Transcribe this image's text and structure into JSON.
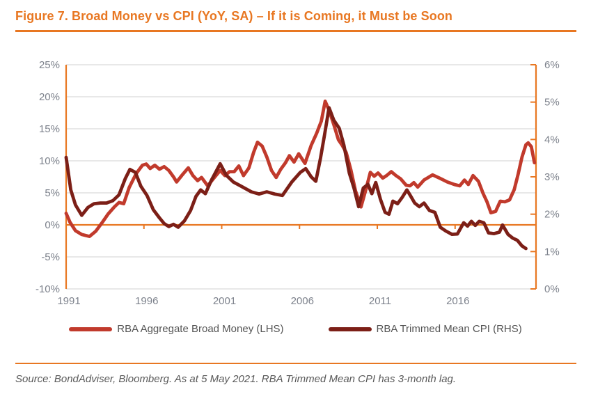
{
  "header": {
    "title": "Figure 7. Broad Money vs CPI (YoY, SA) – If it is Coming, it Must be Soon"
  },
  "colors": {
    "accent_orange": "#E87722",
    "gridline_gray": "#D9D9D9",
    "tick_label_gray": "#7D828C",
    "legend_text_gray": "#555555",
    "source_text_gray": "#595959",
    "broad_money_red": "#C13A2C",
    "cpi_maroon": "#7C1F17"
  },
  "footer": {
    "source_note": "Source: BondAdviser, Bloomberg. As at 5 May 2021. RBA Trimmed Mean CPI has 3-month lag."
  },
  "chart_data": {
    "type": "line",
    "title": "Figure 7. Broad Money vs CPI (YoY, SA) – If it is Coming, it Must be Soon",
    "grid": "horizontal",
    "legend_position": "bottom",
    "x_axis": {
      "range": [
        1991,
        2021.2
      ],
      "tick_years": [
        1991,
        1996,
        2001,
        2006,
        2011,
        2016
      ],
      "zero_line_tick_years": [
        1996,
        2001,
        2006,
        2011,
        2016
      ]
    },
    "y_left": {
      "min": -10,
      "max": 25,
      "tick_step": 5,
      "unit": "%",
      "ticks": [
        25,
        20,
        15,
        10,
        5,
        0,
        -5,
        -10
      ]
    },
    "y_right": {
      "min": 0,
      "max": 6,
      "tick_step": 1,
      "unit": "%",
      "ticks": [
        6,
        5,
        4,
        3,
        2,
        1,
        0
      ]
    },
    "series": [
      {
        "name": "RBA Aggregate Broad Money (LHS)",
        "axis": "left",
        "color": "#C13A2C",
        "points": [
          [
            1991.0,
            1.8
          ],
          [
            1991.25,
            0.4
          ],
          [
            1991.6,
            -0.9
          ],
          [
            1992.0,
            -1.5
          ],
          [
            1992.5,
            -1.8
          ],
          [
            1992.9,
            -1.0
          ],
          [
            1993.3,
            0.3
          ],
          [
            1993.7,
            1.7
          ],
          [
            1994.1,
            2.8
          ],
          [
            1994.4,
            3.5
          ],
          [
            1994.7,
            3.3
          ],
          [
            1995.05,
            5.8
          ],
          [
            1995.5,
            8.0
          ],
          [
            1995.9,
            9.3
          ],
          [
            1996.15,
            9.5
          ],
          [
            1996.4,
            8.8
          ],
          [
            1996.7,
            9.3
          ],
          [
            1997.0,
            8.7
          ],
          [
            1997.3,
            9.1
          ],
          [
            1997.6,
            8.5
          ],
          [
            1997.9,
            7.5
          ],
          [
            1998.1,
            6.7
          ],
          [
            1998.5,
            7.9
          ],
          [
            1998.85,
            8.9
          ],
          [
            1999.15,
            7.7
          ],
          [
            1999.45,
            6.9
          ],
          [
            1999.7,
            7.4
          ],
          [
            2000.1,
            6.1
          ],
          [
            2000.5,
            7.3
          ],
          [
            2000.9,
            8.5
          ],
          [
            2001.2,
            7.7
          ],
          [
            2001.5,
            8.3
          ],
          [
            2001.8,
            8.3
          ],
          [
            2002.1,
            9.2
          ],
          [
            2002.4,
            7.7
          ],
          [
            2002.75,
            8.9
          ],
          [
            2003.05,
            11.3
          ],
          [
            2003.3,
            12.9
          ],
          [
            2003.6,
            12.3
          ],
          [
            2003.9,
            10.6
          ],
          [
            2004.2,
            8.5
          ],
          [
            2004.5,
            7.4
          ],
          [
            2004.8,
            8.7
          ],
          [
            2005.1,
            9.7
          ],
          [
            2005.35,
            10.8
          ],
          [
            2005.65,
            9.8
          ],
          [
            2005.95,
            11.1
          ],
          [
            2006.35,
            9.6
          ],
          [
            2006.75,
            12.4
          ],
          [
            2007.1,
            14.3
          ],
          [
            2007.4,
            16.2
          ],
          [
            2007.65,
            19.3
          ],
          [
            2007.9,
            17.9
          ],
          [
            2008.2,
            15.7
          ],
          [
            2008.5,
            13.3
          ],
          [
            2008.75,
            12.4
          ],
          [
            2009.0,
            11.3
          ],
          [
            2009.3,
            8.6
          ],
          [
            2009.6,
            5.3
          ],
          [
            2009.95,
            2.8
          ],
          [
            2010.25,
            5.4
          ],
          [
            2010.55,
            8.2
          ],
          [
            2010.8,
            7.6
          ],
          [
            2011.05,
            8.1
          ],
          [
            2011.35,
            7.3
          ],
          [
            2011.6,
            7.7
          ],
          [
            2011.9,
            8.3
          ],
          [
            2012.2,
            7.7
          ],
          [
            2012.5,
            7.2
          ],
          [
            2012.85,
            6.2
          ],
          [
            2013.1,
            6.1
          ],
          [
            2013.35,
            6.6
          ],
          [
            2013.6,
            5.9
          ],
          [
            2014.0,
            7.0
          ],
          [
            2014.55,
            7.8
          ],
          [
            2015.0,
            7.3
          ],
          [
            2015.5,
            6.7
          ],
          [
            2015.95,
            6.3
          ],
          [
            2016.3,
            6.1
          ],
          [
            2016.6,
            7.0
          ],
          [
            2016.85,
            6.3
          ],
          [
            2017.15,
            7.7
          ],
          [
            2017.5,
            6.8
          ],
          [
            2017.8,
            4.9
          ],
          [
            2018.05,
            3.6
          ],
          [
            2018.3,
            1.9
          ],
          [
            2018.6,
            2.1
          ],
          [
            2018.9,
            3.7
          ],
          [
            2019.2,
            3.6
          ],
          [
            2019.5,
            3.9
          ],
          [
            2019.8,
            5.5
          ],
          [
            2020.05,
            7.9
          ],
          [
            2020.3,
            10.6
          ],
          [
            2020.55,
            12.5
          ],
          [
            2020.7,
            12.8
          ],
          [
            2020.9,
            12.2
          ],
          [
            2021.1,
            9.7
          ]
        ]
      },
      {
        "name": "RBA Trimmed Mean CPI (RHS)",
        "axis": "right",
        "color": "#7C1F17",
        "points": [
          [
            1991.0,
            3.52
          ],
          [
            1991.3,
            2.65
          ],
          [
            1991.6,
            2.25
          ],
          [
            1992.0,
            1.97
          ],
          [
            1992.4,
            2.18
          ],
          [
            1992.8,
            2.28
          ],
          [
            1993.2,
            2.3
          ],
          [
            1993.6,
            2.3
          ],
          [
            1994.0,
            2.36
          ],
          [
            1994.4,
            2.52
          ],
          [
            1994.8,
            2.95
          ],
          [
            1995.1,
            3.2
          ],
          [
            1995.45,
            3.12
          ],
          [
            1995.8,
            2.75
          ],
          [
            1996.2,
            2.5
          ],
          [
            1996.6,
            2.12
          ],
          [
            1997.0,
            1.9
          ],
          [
            1997.3,
            1.75
          ],
          [
            1997.6,
            1.67
          ],
          [
            1997.9,
            1.73
          ],
          [
            1998.2,
            1.65
          ],
          [
            1998.6,
            1.82
          ],
          [
            1999.0,
            2.1
          ],
          [
            1999.35,
            2.48
          ],
          [
            1999.65,
            2.65
          ],
          [
            1999.95,
            2.55
          ],
          [
            2000.35,
            2.92
          ],
          [
            2000.9,
            3.35
          ],
          [
            2001.3,
            3.04
          ],
          [
            2001.75,
            2.86
          ],
          [
            2002.2,
            2.76
          ],
          [
            2002.9,
            2.6
          ],
          [
            2003.4,
            2.54
          ],
          [
            2003.9,
            2.6
          ],
          [
            2004.4,
            2.54
          ],
          [
            2004.9,
            2.5
          ],
          [
            2005.5,
            2.86
          ],
          [
            2006.05,
            3.12
          ],
          [
            2006.4,
            3.22
          ],
          [
            2006.75,
            3.0
          ],
          [
            2007.05,
            2.88
          ],
          [
            2007.35,
            3.5
          ],
          [
            2007.6,
            4.1
          ],
          [
            2007.9,
            4.85
          ],
          [
            2008.2,
            4.52
          ],
          [
            2008.55,
            4.3
          ],
          [
            2008.85,
            3.85
          ],
          [
            2009.2,
            3.1
          ],
          [
            2009.5,
            2.7
          ],
          [
            2009.8,
            2.2
          ],
          [
            2010.1,
            2.7
          ],
          [
            2010.4,
            2.8
          ],
          [
            2010.65,
            2.55
          ],
          [
            2010.9,
            2.85
          ],
          [
            2011.2,
            2.4
          ],
          [
            2011.5,
            2.05
          ],
          [
            2011.75,
            2.0
          ],
          [
            2012.0,
            2.35
          ],
          [
            2012.3,
            2.28
          ],
          [
            2012.6,
            2.45
          ],
          [
            2012.9,
            2.65
          ],
          [
            2013.15,
            2.48
          ],
          [
            2013.4,
            2.3
          ],
          [
            2013.7,
            2.2
          ],
          [
            2014.0,
            2.3
          ],
          [
            2014.35,
            2.1
          ],
          [
            2014.7,
            2.05
          ],
          [
            2015.05,
            1.65
          ],
          [
            2015.4,
            1.55
          ],
          [
            2015.8,
            1.46
          ],
          [
            2016.15,
            1.47
          ],
          [
            2016.55,
            1.77
          ],
          [
            2016.8,
            1.68
          ],
          [
            2017.05,
            1.81
          ],
          [
            2017.3,
            1.7
          ],
          [
            2017.55,
            1.81
          ],
          [
            2017.85,
            1.77
          ],
          [
            2018.15,
            1.5
          ],
          [
            2018.5,
            1.48
          ],
          [
            2018.85,
            1.52
          ],
          [
            2019.05,
            1.71
          ],
          [
            2019.4,
            1.46
          ],
          [
            2019.7,
            1.36
          ],
          [
            2020.0,
            1.3
          ],
          [
            2020.3,
            1.15
          ],
          [
            2020.55,
            1.08
          ]
        ]
      }
    ]
  }
}
